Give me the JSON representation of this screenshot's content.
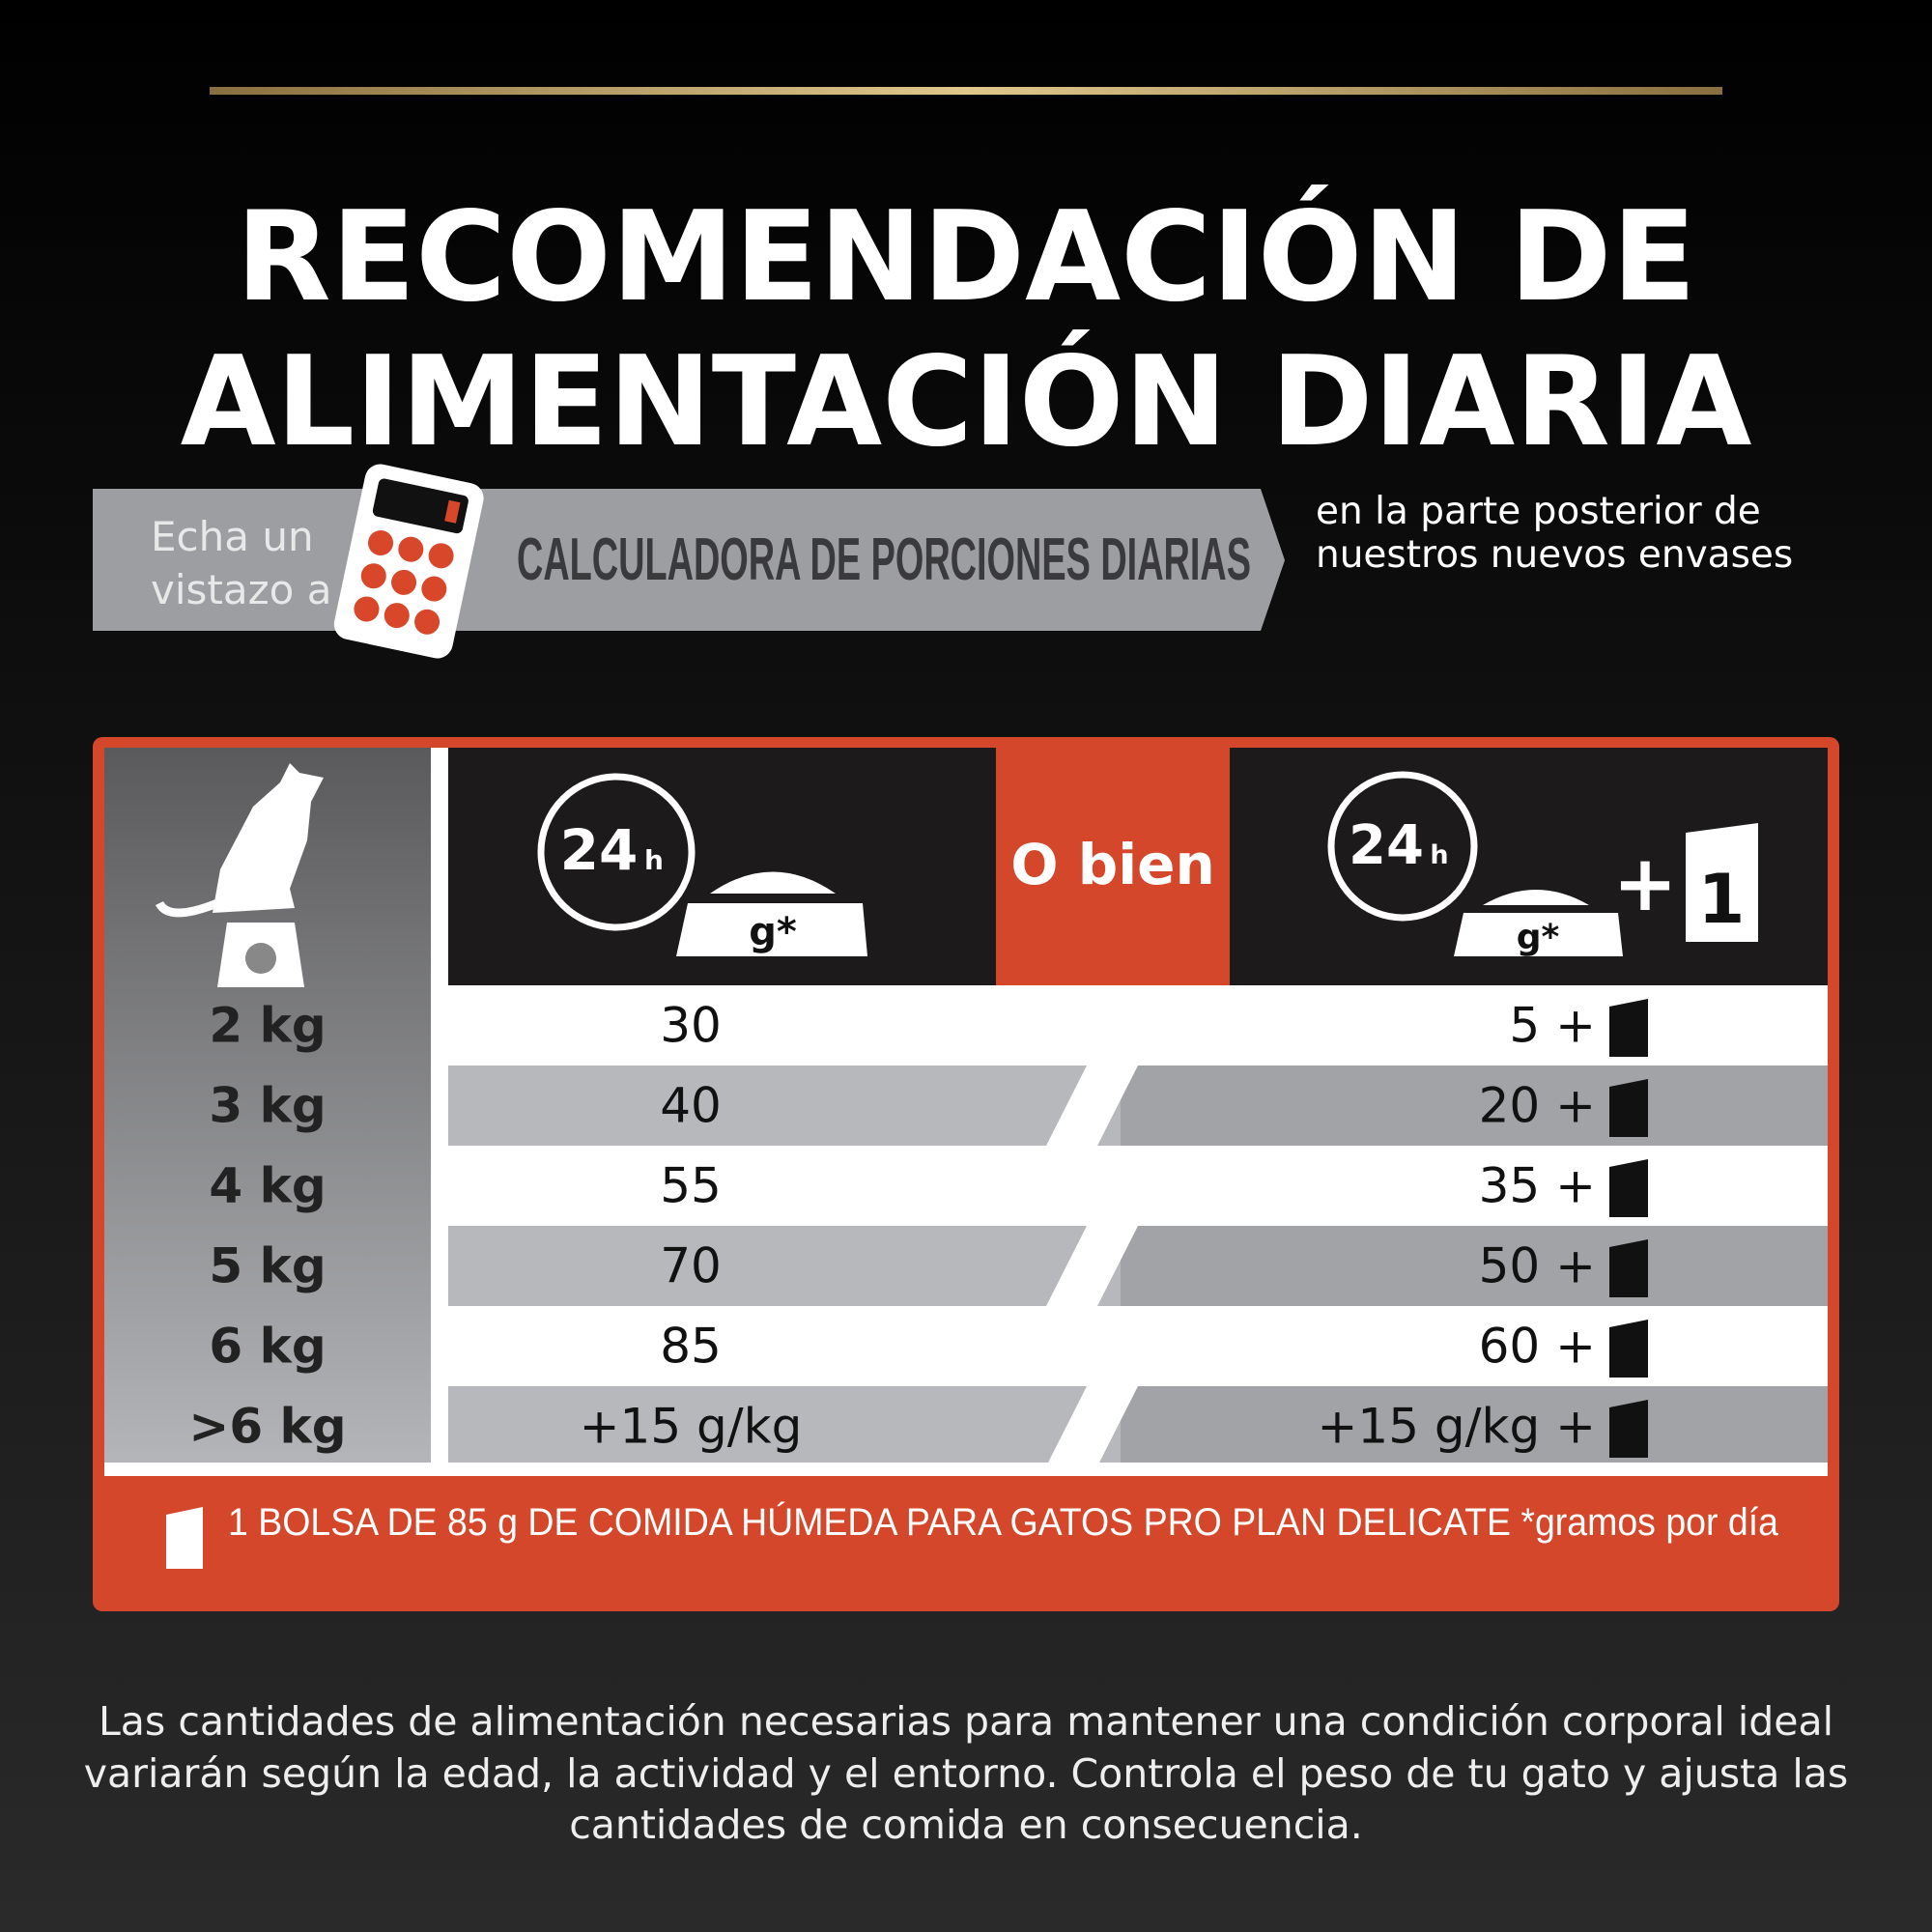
{
  "header": {
    "title_lines": [
      "RECOMENDACIÓN DE",
      "ALIMENTACIÓN DIARIA"
    ]
  },
  "banner": {
    "lead_lines": [
      "Echa un",
      "vistazo a"
    ],
    "highlight": "CALCULADORA DE PORCIONES DIARIAS",
    "side_lines": [
      "en la parte posterior de",
      "nuestros nuevos envases"
    ]
  },
  "table": {
    "header": {
      "clock_number": "24",
      "clock_unit": "h",
      "bowl_label": "g*",
      "or_label": "O bien",
      "plus": "+",
      "pouch_count": "1"
    },
    "rows": [
      [
        "2 kg",
        "30",
        "5 +"
      ],
      [
        "3 kg",
        "40",
        "20 +"
      ],
      [
        "4 kg",
        "55",
        "35 +"
      ],
      [
        "5 kg",
        "70",
        "50 +"
      ],
      [
        "6 kg",
        "85",
        "60 +"
      ],
      [
        ">6 kg",
        "+15 g/kg",
        "+15 g/kg +"
      ]
    ],
    "note": "1 BOLSA DE 85 g DE COMIDA HÚMEDA PARA GATOS PRO PLAN DELICATE *gramos por día"
  },
  "disclaimer": {
    "lines": [
      "Las cantidades de alimentación necesarias para mantener una condición corporal ideal",
      "variarán según la edad, la actividad y el entorno. Controla el peso de tu gato y ajusta las",
      "cantidades de comida en consecuencia."
    ]
  }
}
